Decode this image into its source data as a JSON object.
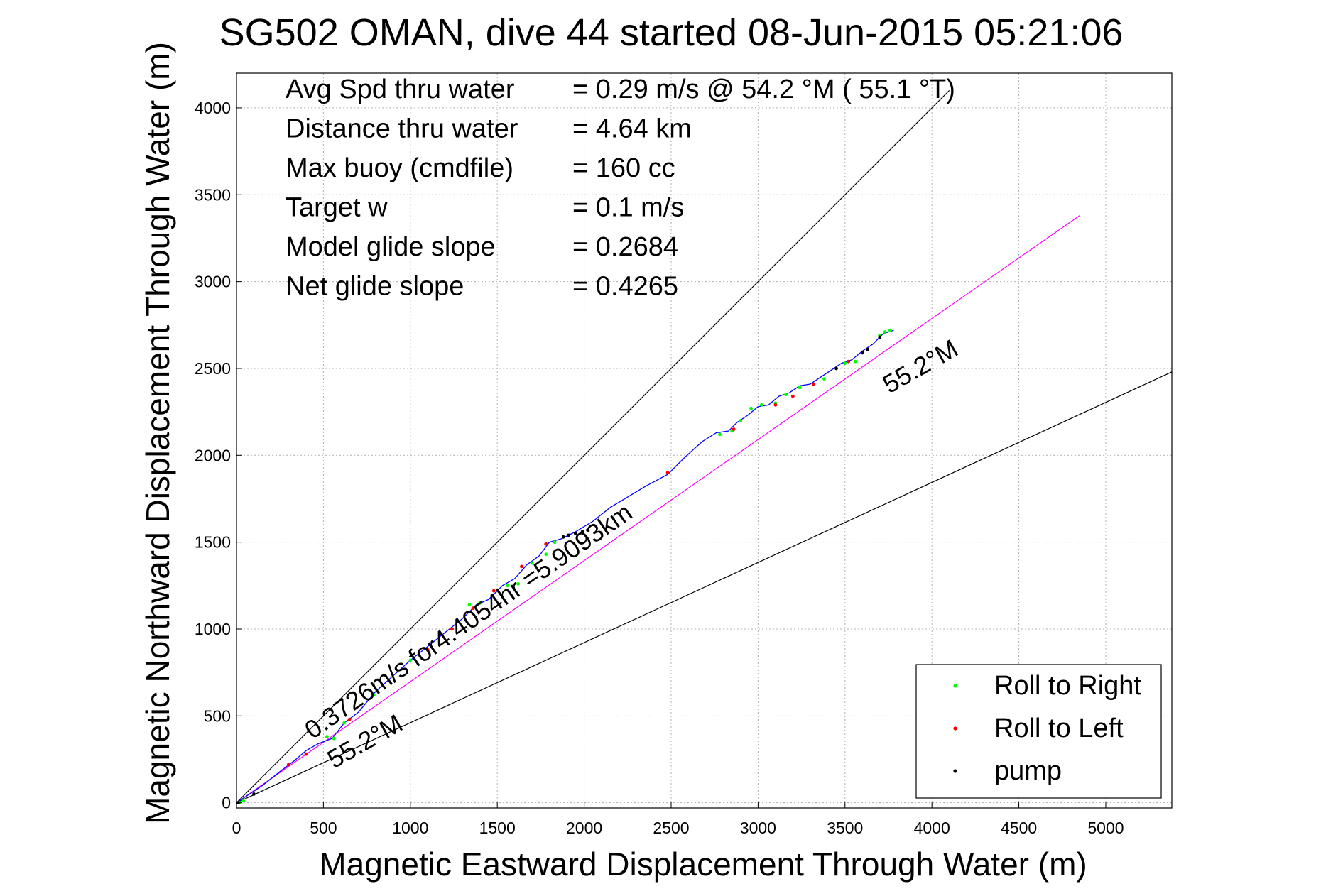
{
  "chart_data": {
    "type": "scatter",
    "title": "SG502 OMAN, dive 44 started 08-Jun-2015 05:21:06",
    "xlabel": "Magnetic Eastward Displacement Through Water (m)",
    "ylabel": "Magnetic Northward Displacement Through Water (m)",
    "xlim": [
      0,
      5380
    ],
    "ylim": [
      -30,
      4200
    ],
    "x_ticks": [
      "0",
      "500",
      "1000",
      "1500",
      "2000",
      "2500",
      "3000",
      "3500",
      "4000",
      "4500",
      "5000"
    ],
    "y_ticks": [
      "0",
      "500",
      "1000",
      "1500",
      "2000",
      "2500",
      "3000",
      "3500",
      "4000"
    ],
    "grid": true,
    "legend_position": "bottom-right",
    "stats": [
      {
        "label": "Avg Spd thru water",
        "value": "=  0.29 m/s @  54.2 °M ( 55.1 °T)"
      },
      {
        "label": "Distance thru water",
        "value": "=  4.64 km"
      },
      {
        "label": "Max buoy (cmdfile)",
        "value": "= 160 cc"
      },
      {
        "label": "Target w",
        "value": "= 0.1 m/s"
      },
      {
        "label": "Model glide slope",
        "value": "= 0.2684"
      },
      {
        "label": "Net glide slope",
        "value": "= 0.4265"
      }
    ],
    "annotations": {
      "heading_upper": "55.2°M",
      "heading_lower": "55.2°M",
      "track_speed": "0.3726m/s for4.4054hr =5.9093km"
    },
    "reference_lines": [
      {
        "x": [
          0,
          4100
        ],
        "y": [
          0,
          4100
        ],
        "color": "#000000"
      },
      {
        "x": [
          0,
          5380
        ],
        "y": [
          0,
          2480
        ],
        "color": "#000000"
      },
      {
        "x": [
          0,
          4850
        ],
        "y": [
          0,
          3380
        ],
        "color": "#ff00ff"
      }
    ],
    "track": {
      "color": "#0000ff",
      "x": [
        0,
        60,
        150,
        250,
        330,
        400,
        470,
        550,
        620,
        700,
        800,
        900,
        1000,
        1100,
        1200,
        1300,
        1380,
        1450,
        1530,
        1600,
        1670,
        1740,
        1800,
        1870,
        1950,
        2050,
        2150,
        2250,
        2350,
        2480,
        2580,
        2680,
        2760,
        2830,
        2880,
        2940,
        3000,
        3060,
        3120,
        3180,
        3240,
        3300,
        3360,
        3420,
        3480,
        3540,
        3600,
        3660,
        3720,
        3780
      ],
      "y": [
        0,
        40,
        100,
        180,
        240,
        300,
        340,
        370,
        460,
        520,
        640,
        730,
        820,
        900,
        980,
        1060,
        1140,
        1170,
        1250,
        1290,
        1370,
        1420,
        1500,
        1520,
        1560,
        1620,
        1700,
        1760,
        1820,
        1890,
        1990,
        2080,
        2130,
        2140,
        2190,
        2230,
        2280,
        2290,
        2340,
        2360,
        2400,
        2410,
        2450,
        2490,
        2530,
        2550,
        2600,
        2640,
        2700,
        2720
      ]
    },
    "series": [
      {
        "name": "Roll to Right",
        "color": "#00ff00",
        "x": [
          20,
          40,
          520,
          560,
          620,
          790,
          1000,
          1340,
          1400,
          1560,
          1620,
          1700,
          1780,
          1830,
          2780,
          2850,
          2900,
          2960,
          3020,
          3100,
          3160,
          3240,
          3320,
          3380,
          3500,
          3560,
          3700,
          3730,
          3760
        ],
        "y": [
          0,
          10,
          380,
          370,
          460,
          620,
          820,
          1140,
          1150,
          1250,
          1260,
          1380,
          1430,
          1500,
          2120,
          2140,
          2200,
          2270,
          2290,
          2300,
          2350,
          2390,
          2410,
          2440,
          2530,
          2540,
          2690,
          2710,
          2720
        ]
      },
      {
        "name": "Roll to Left",
        "color": "#ff0000",
        "x": [
          300,
          400,
          650,
          1100,
          1240,
          1360,
          1480,
          1640,
          1780,
          2480,
          2860,
          3100,
          3200,
          3320,
          3520
        ],
        "y": [
          220,
          280,
          480,
          880,
          1000,
          1120,
          1220,
          1360,
          1490,
          1900,
          2150,
          2290,
          2340,
          2410,
          2540
        ]
      },
      {
        "name": "pump",
        "color": "#000000",
        "x": [
          10,
          100,
          1880,
          1910,
          1950,
          1990,
          2020,
          3450,
          3600,
          3630,
          3700
        ],
        "y": [
          0,
          50,
          1530,
          1540,
          1550,
          1560,
          1570,
          2500,
          2590,
          2610,
          2680
        ]
      }
    ]
  }
}
